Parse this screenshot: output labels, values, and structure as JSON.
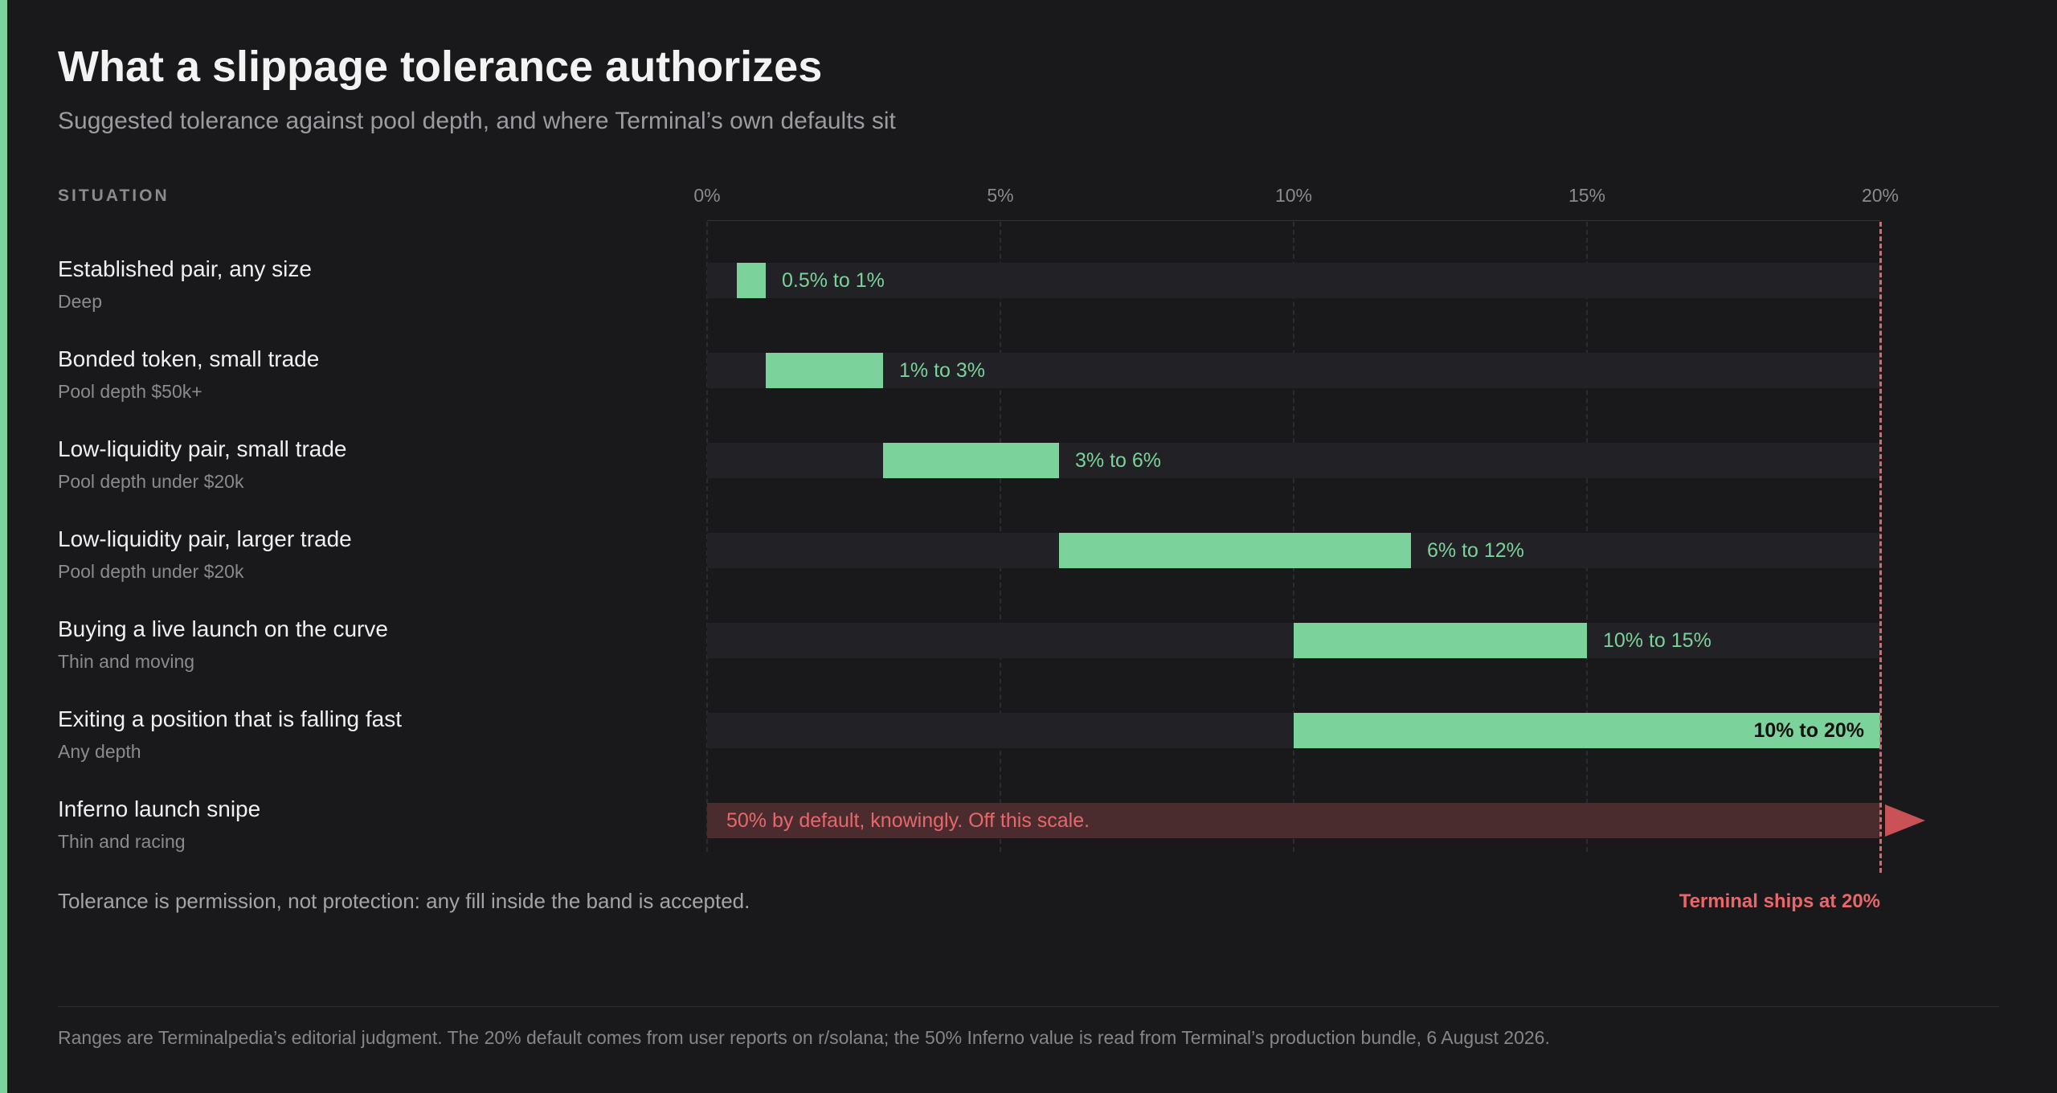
{
  "header": {
    "title": "What a slippage tolerance authorizes",
    "subtitle": "Suggested tolerance against pool depth, and where Terminal’s own defaults sit",
    "column_header": "SITUATION"
  },
  "colors": {
    "accent": "#7bd29a",
    "limit": "#e06666",
    "background": "#19191b"
  },
  "chart_data": {
    "type": "bar",
    "orientation": "horizontal-range",
    "xlim": [
      0,
      20
    ],
    "x_ticks": [
      "0%",
      "5%",
      "10%",
      "15%",
      "20%"
    ],
    "x_tick_values": [
      0,
      5,
      10,
      15,
      20
    ],
    "rows": [
      {
        "label": "Established pair, any size",
        "sub": "Deep",
        "low": 0.5,
        "high": 1,
        "range_label": "0.5% to 1%"
      },
      {
        "label": "Bonded token, small trade",
        "sub": "Pool depth $50k+",
        "low": 1,
        "high": 3,
        "range_label": "1% to 3%"
      },
      {
        "label": "Low-liquidity pair, small trade",
        "sub": "Pool depth under $20k",
        "low": 3,
        "high": 6,
        "range_label": "3% to 6%"
      },
      {
        "label": "Low-liquidity pair, larger trade",
        "sub": "Pool depth under $20k",
        "low": 6,
        "high": 12,
        "range_label": "6% to 12%"
      },
      {
        "label": "Buying a live launch on the curve",
        "sub": "Thin and moving",
        "low": 10,
        "high": 15,
        "range_label": "10% to 15%"
      },
      {
        "label": "Exiting a position that is falling fast",
        "sub": "Any depth",
        "low": 10,
        "high": 20,
        "range_label": "10% to 20%"
      }
    ],
    "offscale_row": {
      "label": "Inferno launch snipe",
      "sub": "Thin and racing",
      "value": 50,
      "text": "50% by default, knowingly. Off this scale."
    },
    "reference_line": {
      "value": 20,
      "label": "Terminal ships at 20%"
    },
    "note": "Tolerance is permission, not protection: any fill inside the band is accepted."
  },
  "footer": {
    "text": "Ranges are Terminalpedia’s editorial judgment. The 20% default comes from user reports on r/solana; the 50% Inferno value is read from Terminal’s production bundle, 6 August 2026."
  }
}
